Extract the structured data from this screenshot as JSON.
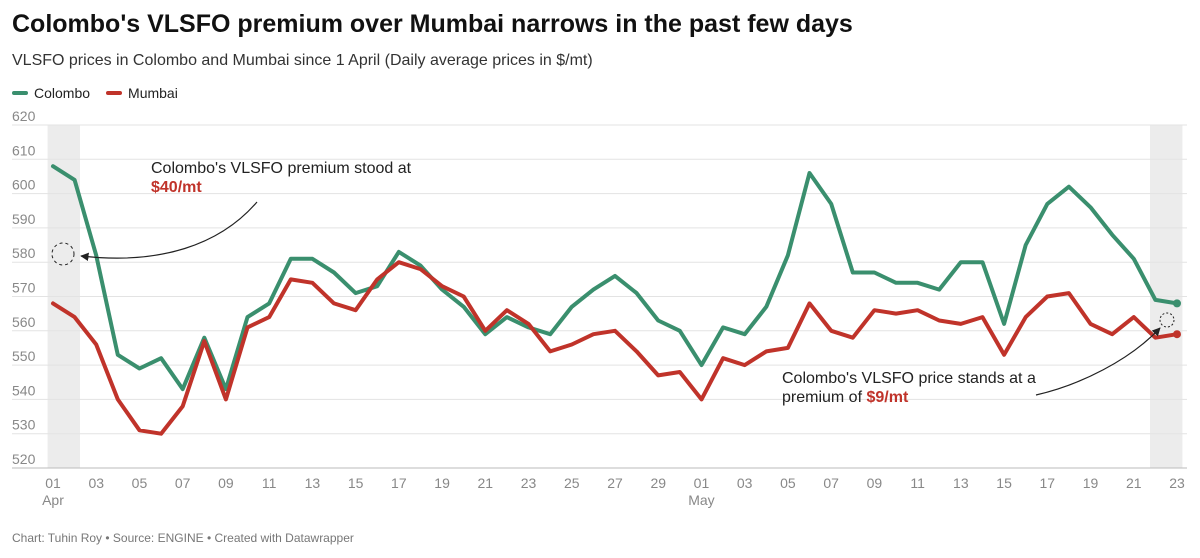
{
  "header": {
    "title": "Colombo's VLSFO premium over Mumbai narrows in the past few days",
    "subtitle": "VLSFO prices in Colombo and Mumbai since 1 April (Daily average prices in $/mt)"
  },
  "footer": {
    "credit": "Chart: Tuhin Roy • Source: ENGINE • Created with Datawrapper"
  },
  "annotations": {
    "first": {
      "text": "Colombo's VLSFO premium stood at",
      "value": "$40/mt"
    },
    "second": {
      "line1": "Colombo's VLSFO price stands at a",
      "line2": "premium of ",
      "value": "$9/mt"
    }
  },
  "colors": {
    "colombo": "#3a8f6e",
    "mumbai": "#c0332a",
    "grid": "#e3e3e3",
    "axis_text": "#888888",
    "highlight_band": "#ececec"
  },
  "chart_data": {
    "type": "line",
    "title": "Colombo's VLSFO premium over Mumbai narrows in the past few days",
    "ylabel": "",
    "xlabel": "",
    "ylim": [
      520,
      620
    ],
    "yticks": [
      520,
      530,
      540,
      550,
      560,
      570,
      580,
      590,
      600,
      610,
      620
    ],
    "grid": true,
    "legend_position": "top-left",
    "x": [
      "Apr 01",
      "Apr 02",
      "Apr 03",
      "Apr 04",
      "Apr 05",
      "Apr 06",
      "Apr 07",
      "Apr 08",
      "Apr 09",
      "Apr 10",
      "Apr 11",
      "Apr 12",
      "Apr 13",
      "Apr 14",
      "Apr 15",
      "Apr 16",
      "Apr 17",
      "Apr 18",
      "Apr 19",
      "Apr 20",
      "Apr 21",
      "Apr 22",
      "Apr 23",
      "Apr 24",
      "Apr 25",
      "Apr 26",
      "Apr 27",
      "Apr 28",
      "Apr 29",
      "Apr 30",
      "May 01",
      "May 02",
      "May 03",
      "May 04",
      "May 05",
      "May 06",
      "May 07",
      "May 08",
      "May 09",
      "May 10",
      "May 11",
      "May 12",
      "May 13",
      "May 14",
      "May 15",
      "May 16",
      "May 17",
      "May 18",
      "May 19",
      "May 20",
      "May 21",
      "May 22",
      "May 23"
    ],
    "xtick_labels": [
      {
        "at": "Apr 01",
        "label": "01",
        "sub": "Apr"
      },
      {
        "at": "Apr 03",
        "label": "03"
      },
      {
        "at": "Apr 05",
        "label": "05"
      },
      {
        "at": "Apr 07",
        "label": "07"
      },
      {
        "at": "Apr 09",
        "label": "09"
      },
      {
        "at": "Apr 11",
        "label": "11"
      },
      {
        "at": "Apr 13",
        "label": "13"
      },
      {
        "at": "Apr 15",
        "label": "15"
      },
      {
        "at": "Apr 17",
        "label": "17"
      },
      {
        "at": "Apr 19",
        "label": "19"
      },
      {
        "at": "Apr 21",
        "label": "21"
      },
      {
        "at": "Apr 23",
        "label": "23"
      },
      {
        "at": "Apr 25",
        "label": "25"
      },
      {
        "at": "Apr 27",
        "label": "27"
      },
      {
        "at": "Apr 29",
        "label": "29"
      },
      {
        "at": "May 01",
        "label": "01",
        "sub": "May"
      },
      {
        "at": "May 03",
        "label": "03"
      },
      {
        "at": "May 05",
        "label": "05"
      },
      {
        "at": "May 07",
        "label": "07"
      },
      {
        "at": "May 09",
        "label": "09"
      },
      {
        "at": "May 11",
        "label": "11"
      },
      {
        "at": "May 13",
        "label": "13"
      },
      {
        "at": "May 15",
        "label": "15"
      },
      {
        "at": "May 17",
        "label": "17"
      },
      {
        "at": "May 19",
        "label": "19"
      },
      {
        "at": "May 21",
        "label": "21"
      },
      {
        "at": "May 23",
        "label": "23"
      }
    ],
    "highlight_ranges": [
      [
        "Apr 01",
        "Apr 02"
      ],
      [
        "May 22",
        "May 23"
      ]
    ],
    "series": [
      {
        "name": "Colombo",
        "color": "#3a8f6e",
        "values": [
          608,
          604,
          582,
          553,
          549,
          552,
          543,
          558,
          543,
          564,
          568,
          581,
          581,
          577,
          571,
          573,
          583,
          579,
          572,
          567,
          559,
          564,
          561,
          559,
          567,
          572,
          576,
          571,
          563,
          560,
          550,
          561,
          559,
          567,
          582,
          606,
          597,
          577,
          577,
          574,
          574,
          572,
          580,
          580,
          562,
          585,
          597,
          602,
          596,
          588,
          581,
          569,
          568
        ]
      },
      {
        "name": "Mumbai",
        "color": "#c0332a",
        "values": [
          568,
          564,
          556,
          540,
          531,
          530,
          538,
          557,
          540,
          561,
          564,
          575,
          574,
          568,
          566,
          575,
          580,
          578,
          573,
          570,
          560,
          566,
          562,
          554,
          556,
          559,
          560,
          554,
          547,
          548,
          540,
          552,
          550,
          554,
          555,
          568,
          560,
          558,
          566,
          565,
          566,
          563,
          562,
          564,
          553,
          564,
          570,
          571,
          562,
          559,
          564,
          558,
          559
        ]
      }
    ]
  }
}
